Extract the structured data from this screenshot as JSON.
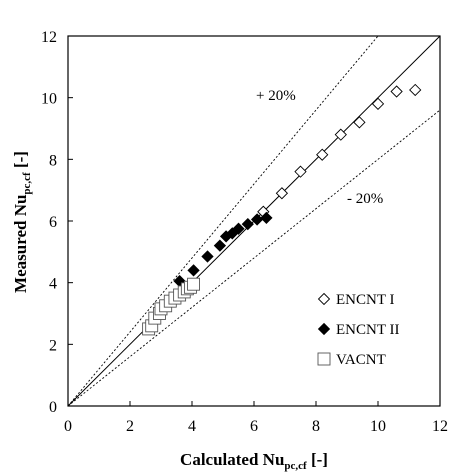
{
  "chart_data": {
    "type": "scatter",
    "title": "",
    "xlabel": "Calculated Nu",
    "xlabel_sub": "pc,cf",
    "xlabel_suffix": " [-]",
    "ylabel": "Measured Nu",
    "ylabel_sub": "pc,cf",
    "ylabel_suffix": " [-]",
    "xlim": [
      0,
      12
    ],
    "ylim": [
      0,
      12
    ],
    "xticks": [
      0,
      2,
      4,
      6,
      8,
      10,
      12
    ],
    "yticks": [
      0,
      2,
      4,
      6,
      8,
      10,
      12
    ],
    "grid": false,
    "legend_position": "bottom-right",
    "reference_lines": [
      {
        "label": "",
        "slope": 1.0,
        "style": "solid"
      },
      {
        "label": "+ 20%",
        "slope": 1.2,
        "style": "dotted"
      },
      {
        "label": "- 20%",
        "slope": 0.8,
        "style": "dotted"
      }
    ],
    "series": [
      {
        "name": "ENCNT I",
        "marker": "open-diamond",
        "points": [
          [
            6.3,
            6.3
          ],
          [
            6.9,
            6.9
          ],
          [
            7.5,
            7.6
          ],
          [
            8.2,
            8.15
          ],
          [
            8.8,
            8.8
          ],
          [
            9.4,
            9.2
          ],
          [
            10.0,
            9.8
          ],
          [
            10.6,
            10.2
          ],
          [
            11.2,
            10.25
          ]
        ]
      },
      {
        "name": "ENCNT II",
        "marker": "filled-diamond",
        "points": [
          [
            3.6,
            4.05
          ],
          [
            4.05,
            4.4
          ],
          [
            4.5,
            4.85
          ],
          [
            4.9,
            5.2
          ],
          [
            5.1,
            5.5
          ],
          [
            5.3,
            5.6
          ],
          [
            5.5,
            5.75
          ],
          [
            5.8,
            5.9
          ],
          [
            6.1,
            6.05
          ],
          [
            6.4,
            6.1
          ]
        ]
      },
      {
        "name": "VACNT",
        "marker": "open-square",
        "points": [
          [
            2.6,
            2.5
          ],
          [
            2.7,
            2.6
          ],
          [
            2.8,
            2.85
          ],
          [
            2.95,
            3.0
          ],
          [
            3.0,
            3.15
          ],
          [
            3.15,
            3.25
          ],
          [
            3.3,
            3.4
          ],
          [
            3.45,
            3.5
          ],
          [
            3.6,
            3.6
          ],
          [
            3.75,
            3.7
          ],
          [
            3.85,
            3.8
          ],
          [
            3.95,
            3.85
          ],
          [
            4.05,
            3.95
          ]
        ]
      }
    ]
  }
}
